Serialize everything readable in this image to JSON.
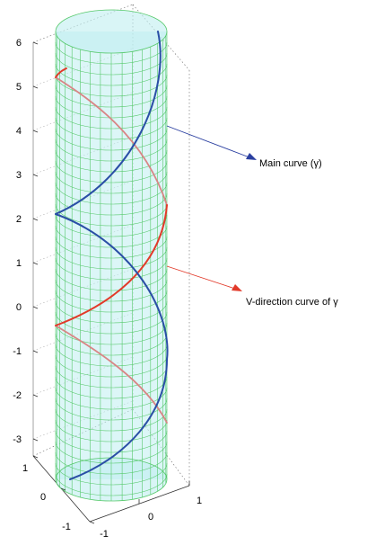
{
  "annotations": [
    {
      "text": "Main curve (γ)",
      "color": "#1f3fa8"
    },
    {
      "text": "V-direction curve of  γ",
      "color": "#e23a2a"
    }
  ],
  "z_axis": {
    "ticks": [
      "6",
      "5",
      "4",
      "3",
      "2",
      "1",
      "0",
      "-1",
      "-2",
      "-3"
    ]
  },
  "x_axis": {
    "ticks": [
      "1",
      "0",
      "-1"
    ]
  },
  "y_axis": {
    "ticks": [
      "-1",
      "0",
      "1"
    ]
  },
  "colors": {
    "surface_fill": "#bfeef0",
    "grid": "#56c96b",
    "main_curve": "#2a4fa6",
    "v_curve": "#e23a2a",
    "v_curve_back": "#d98585",
    "axis": "#333333"
  },
  "surface": {
    "type": "cylinder",
    "radius": 1,
    "z_range": [
      -3.5,
      6
    ]
  }
}
